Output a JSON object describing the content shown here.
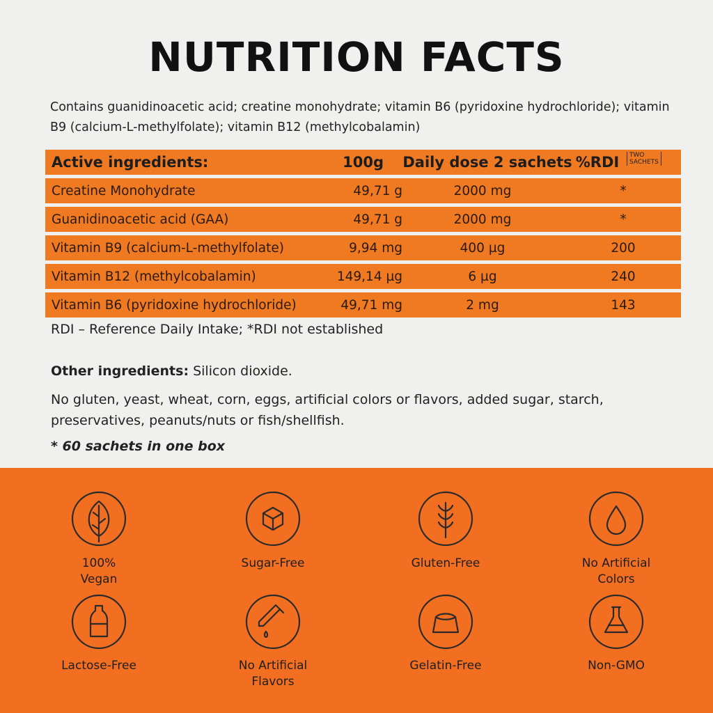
{
  "title": "NUTRITION FACTS",
  "contains": "Contains guanidinoacetic acid; creatine monohydrate; vitamin B6 (pyridoxine hydrochloride); vitamin B9 (calcium-L-methylfolate); vitamin B12 (methylcobalamin)",
  "table": {
    "header": [
      "Active ingredients:",
      "100g",
      "Daily dose  2 sachets",
      "%RDI"
    ],
    "rdi_note": [
      "TWO",
      "SACHETS"
    ],
    "rows": [
      [
        "Creatine Monohydrate",
        "49,71 g",
        "2000 mg",
        "*"
      ],
      [
        "Guanidinoacetic acid (GAA)",
        "49,71 g",
        "2000 mg",
        "*"
      ],
      [
        "Vitamin B9 (calcium-L-methylfolate)",
        "9,94 mg",
        "400 µg",
        "200"
      ],
      [
        "Vitamin B12 (methylcobalamin)",
        "149,14 µg",
        "6 µg",
        "240"
      ],
      [
        "Vitamin B6 (pyridoxine hydrochloride)",
        "49,71 mg",
        "2 mg",
        "143"
      ]
    ]
  },
  "footnote": "RDI – Reference Daily Intake; *RDI not established",
  "other_label": "Other ingredients:",
  "other_text": "Silicon dioxide.",
  "free_from": "No gluten, yeast, wheat, corn, eggs, artificial colors or flavors, added sugar, starch, preservatives, peanuts/nuts or fish/shellfish.",
  "box_note": "* 60 sachets in one box",
  "badges": [
    [
      "100%",
      "Vegan"
    ],
    [
      "Sugar-Free"
    ],
    [
      "Gluten-Free"
    ],
    [
      "No Artificial",
      "Colors"
    ],
    [
      "Lactose-Free"
    ],
    [
      "No Artificial",
      "Flavors"
    ],
    [
      "Gelatin-Free"
    ],
    [
      "Non-GMO"
    ]
  ]
}
